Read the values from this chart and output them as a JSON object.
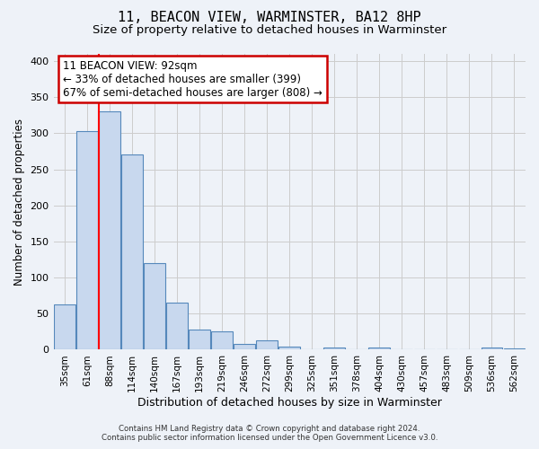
{
  "title": "11, BEACON VIEW, WARMINSTER, BA12 8HP",
  "subtitle": "Size of property relative to detached houses in Warminster",
  "xlabel": "Distribution of detached houses by size in Warminster",
  "ylabel": "Number of detached properties",
  "bar_labels": [
    "35sqm",
    "61sqm",
    "88sqm",
    "114sqm",
    "140sqm",
    "167sqm",
    "193sqm",
    "219sqm",
    "246sqm",
    "272sqm",
    "299sqm",
    "325sqm",
    "351sqm",
    "378sqm",
    "404sqm",
    "430sqm",
    "457sqm",
    "483sqm",
    "509sqm",
    "536sqm",
    "562sqm"
  ],
  "bar_values": [
    63,
    303,
    330,
    270,
    120,
    65,
    28,
    25,
    8,
    13,
    4,
    0,
    3,
    0,
    3,
    0,
    0,
    0,
    0,
    3,
    2
  ],
  "bar_color": "#c8d8ee",
  "bar_edge_color": "#5588bb",
  "ylim": [
    0,
    410
  ],
  "yticks": [
    0,
    50,
    100,
    150,
    200,
    250,
    300,
    350,
    400
  ],
  "red_line_index": 2,
  "annotation_title": "11 BEACON VIEW: 92sqm",
  "annotation_line1": "← 33% of detached houses are smaller (399)",
  "annotation_line2": "67% of semi-detached houses are larger (808) →",
  "annotation_box_color": "#ffffff",
  "annotation_box_edge": "#cc0000",
  "footer_line1": "Contains HM Land Registry data © Crown copyright and database right 2024.",
  "footer_line2": "Contains public sector information licensed under the Open Government Licence v3.0.",
  "bg_color": "#eef2f8",
  "grid_color": "#cccccc",
  "title_fontsize": 11,
  "subtitle_fontsize": 9.5,
  "xlabel_fontsize": 9,
  "ylabel_fontsize": 8.5
}
